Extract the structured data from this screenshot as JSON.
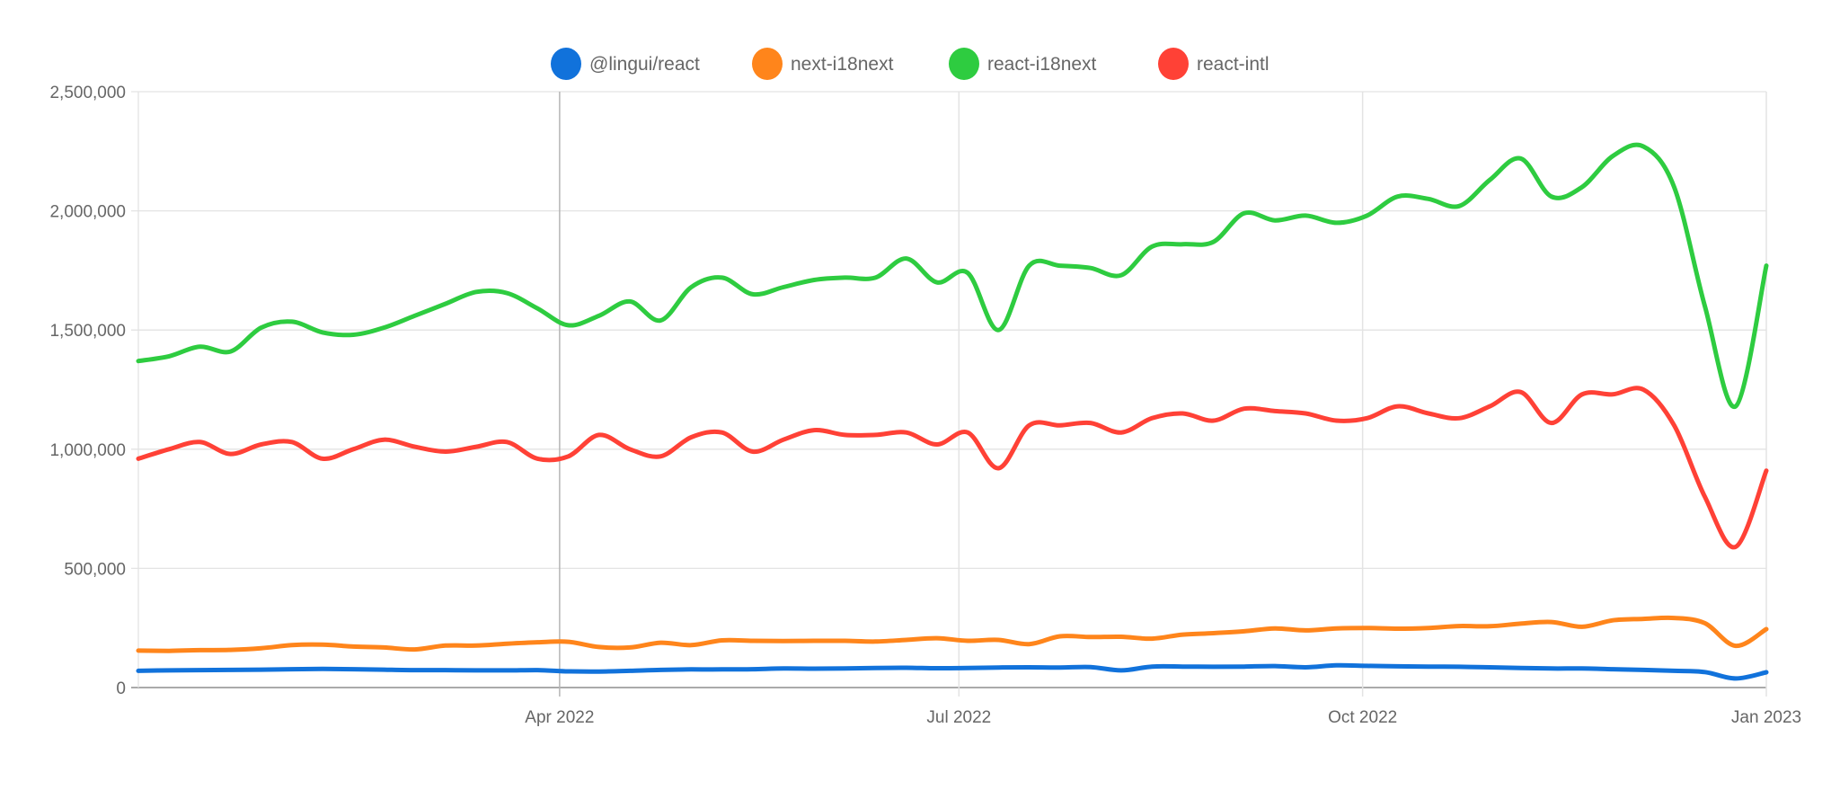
{
  "chart_data": {
    "type": "line",
    "title": "",
    "xlabel": "",
    "ylabel": "",
    "x_start": "2021-12-26",
    "x_step_days": 7,
    "x_range": [
      "2021-12-26",
      "2023-01-01"
    ],
    "ylim": [
      0,
      2500000
    ],
    "grid": true,
    "legend_position": "top-center",
    "y_ticks": [
      {
        "value": 0,
        "label": "0"
      },
      {
        "value": 500000,
        "label": "500,000"
      },
      {
        "value": 1000000,
        "label": "1,000,000"
      },
      {
        "value": 1500000,
        "label": "1,500,000"
      },
      {
        "value": 2000000,
        "label": "2,000,000"
      },
      {
        "value": 2500000,
        "label": "2,500,000"
      }
    ],
    "x_ticks": [
      {
        "date": "2022-04-01",
        "label": "Apr 2022"
      },
      {
        "date": "2022-07-01",
        "label": "Jul 2022"
      },
      {
        "date": "2022-10-01",
        "label": "Oct 2022"
      },
      {
        "date": "2023-01-01",
        "label": "Jan 2023"
      }
    ],
    "series": [
      {
        "name": "@lingui/react",
        "color": "#1172db",
        "values": [
          70000,
          72000,
          73000,
          74000,
          75000,
          77000,
          78000,
          77000,
          75000,
          73000,
          73000,
          72000,
          72000,
          73000,
          68000,
          67000,
          70000,
          74000,
          76000,
          76000,
          77000,
          80000,
          79000,
          80000,
          82000,
          83000,
          81000,
          82000,
          84000,
          85000,
          84000,
          86000,
          72000,
          88000,
          88000,
          87000,
          88000,
          90000,
          85000,
          93000,
          91000,
          89000,
          88000,
          87000,
          85000,
          82000,
          80000,
          80000,
          77000,
          74000,
          70000,
          65000,
          38000,
          64000
        ]
      },
      {
        "name": "next-i18next",
        "color": "#ff851b",
        "values": [
          155000,
          154000,
          157000,
          158000,
          165000,
          178000,
          180000,
          172000,
          168000,
          160000,
          176000,
          176000,
          184000,
          190000,
          192000,
          170000,
          168000,
          188000,
          178000,
          198000,
          196000,
          195000,
          196000,
          196000,
          193000,
          200000,
          207000,
          196000,
          200000,
          182000,
          215000,
          212000,
          213000,
          205000,
          222000,
          228000,
          236000,
          248000,
          240000,
          248000,
          250000,
          247000,
          250000,
          258000,
          257000,
          268000,
          275000,
          255000,
          282000,
          288000,
          292000,
          270000,
          175000,
          245000
        ]
      },
      {
        "name": "react-i18next",
        "color": "#2ecc40",
        "values": [
          1370000,
          1390000,
          1430000,
          1410000,
          1510000,
          1535000,
          1490000,
          1480000,
          1510000,
          1560000,
          1610000,
          1660000,
          1655000,
          1590000,
          1520000,
          1560000,
          1620000,
          1540000,
          1680000,
          1720000,
          1650000,
          1680000,
          1710000,
          1720000,
          1720000,
          1800000,
          1700000,
          1740000,
          1500000,
          1770000,
          1770000,
          1760000,
          1730000,
          1850000,
          1860000,
          1870000,
          1990000,
          1960000,
          1980000,
          1950000,
          1980000,
          2060000,
          2050000,
          2020000,
          2130000,
          2220000,
          2060000,
          2100000,
          2230000,
          2270000,
          2100000,
          1600000,
          1180000,
          1770000
        ]
      },
      {
        "name": "react-intl",
        "color": "#ff4136",
        "values": [
          960000,
          1000000,
          1030000,
          980000,
          1020000,
          1030000,
          960000,
          1000000,
          1040000,
          1010000,
          990000,
          1010000,
          1030000,
          960000,
          970000,
          1060000,
          1000000,
          970000,
          1050000,
          1070000,
          990000,
          1040000,
          1080000,
          1060000,
          1060000,
          1070000,
          1020000,
          1070000,
          920000,
          1100000,
          1100000,
          1110000,
          1070000,
          1130000,
          1150000,
          1120000,
          1170000,
          1160000,
          1150000,
          1120000,
          1130000,
          1180000,
          1150000,
          1130000,
          1180000,
          1240000,
          1110000,
          1230000,
          1230000,
          1250000,
          1100000,
          800000,
          590000,
          910000
        ]
      }
    ]
  }
}
